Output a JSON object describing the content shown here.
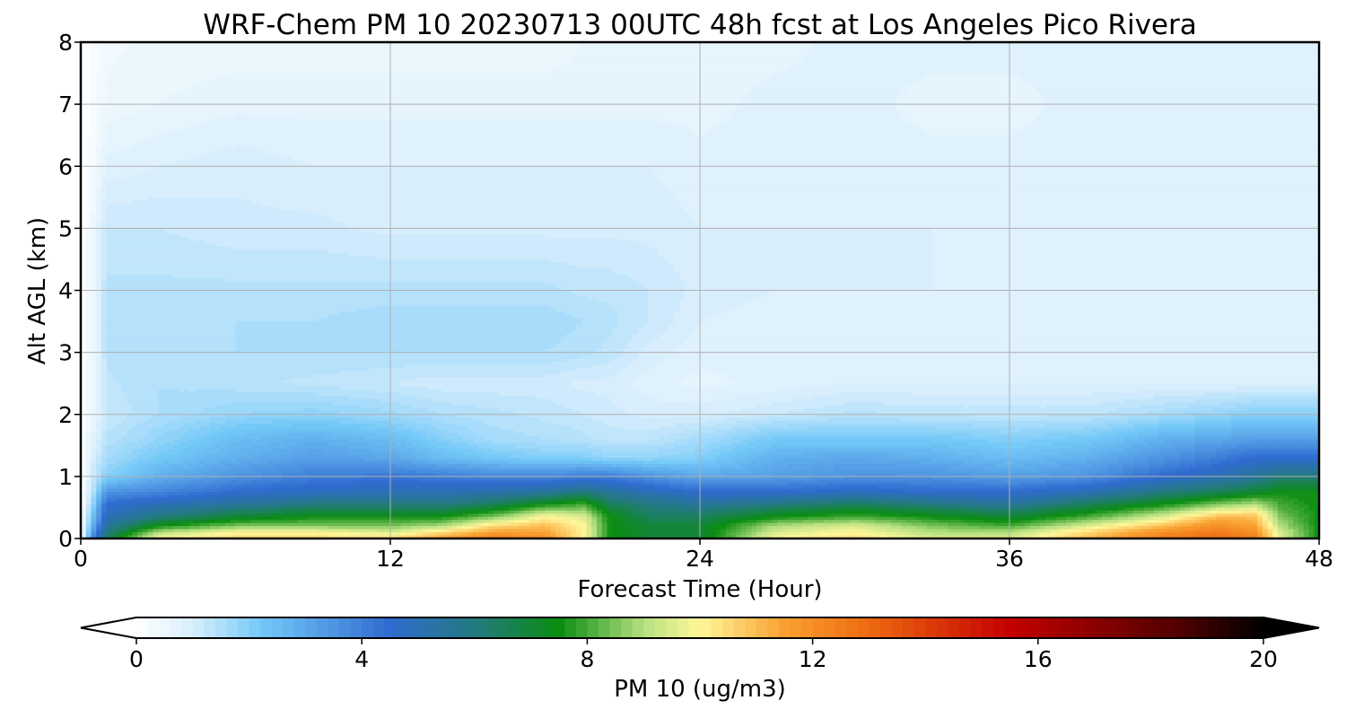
{
  "chart_data": {
    "type": "heatmap",
    "title": "WRF-Chem PM 10  20230713 00UTC 48h fcst at Los Angeles Pico Rivera",
    "xlabel": "Forecast Time (Hour)",
    "ylabel": "Alt AGL (km)",
    "xlim": [
      0,
      48
    ],
    "ylim": [
      0,
      8
    ],
    "xticks": [
      "0",
      "12",
      "24",
      "36",
      "48"
    ],
    "yticks": [
      "0",
      "1",
      "2",
      "3",
      "4",
      "5",
      "6",
      "7",
      "8"
    ],
    "grid": true,
    "colorbar": {
      "label": "PM 10  (ug/m3)",
      "range": [
        0,
        20
      ],
      "ticks": [
        "0",
        "4",
        "8",
        "12",
        "16",
        "20"
      ],
      "extend": "both",
      "stops": [
        {
          "v": 0,
          "c": "#ffffff"
        },
        {
          "v": 1,
          "c": "#d8eefc"
        },
        {
          "v": 2.2,
          "c": "#74c9f8"
        },
        {
          "v": 4.5,
          "c": "#2f6bd0"
        },
        {
          "v": 6,
          "c": "#237a80"
        },
        {
          "v": 7.5,
          "c": "#0a8d10"
        },
        {
          "v": 9,
          "c": "#b6e080"
        },
        {
          "v": 10,
          "c": "#fff79a"
        },
        {
          "v": 11.5,
          "c": "#f9a030"
        },
        {
          "v": 13,
          "c": "#ee6a10"
        },
        {
          "v": 15.5,
          "c": "#c40000"
        },
        {
          "v": 18.5,
          "c": "#500000"
        },
        {
          "v": 20,
          "c": "#000000"
        }
      ]
    },
    "x": [
      0,
      0.5,
      1,
      3,
      6,
      9,
      12,
      14,
      16,
      18,
      19.5,
      20.5,
      22,
      24,
      27,
      30,
      33,
      36,
      39,
      42,
      44,
      45.5,
      46.5,
      48
    ],
    "y": [
      0,
      0.1,
      0.2,
      0.35,
      0.55,
      0.75,
      1.0,
      1.3,
      1.6,
      2.0,
      2.5,
      3.0,
      3.5,
      4.0,
      5.0,
      6.0,
      7.0,
      8.0
    ],
    "z": [
      [
        0.0,
        4.0,
        6.5,
        10.0,
        10.5,
        10.5,
        10.5,
        11.5,
        12.5,
        12.0,
        10.0,
        7.5,
        7.0,
        7.0,
        10.0,
        10.5,
        9.5,
        9.5,
        11.0,
        12.5,
        13.0,
        12.5,
        9.5,
        7.5
      ],
      [
        0.0,
        3.5,
        6.0,
        9.0,
        10.0,
        10.0,
        9.5,
        10.5,
        11.5,
        11.5,
        10.0,
        7.5,
        7.0,
        7.0,
        9.5,
        10.0,
        9.0,
        9.0,
        10.5,
        12.0,
        12.5,
        12.0,
        9.5,
        7.5
      ],
      [
        0.0,
        3.0,
        5.5,
        7.5,
        8.5,
        8.5,
        8.5,
        9.0,
        10.5,
        11.0,
        10.0,
        7.5,
        7.0,
        7.0,
        9.0,
        9.5,
        8.5,
        8.0,
        9.5,
        11.0,
        12.0,
        11.5,
        9.0,
        7.5
      ],
      [
        0.0,
        2.5,
        5.0,
        6.0,
        7.0,
        7.5,
        7.5,
        7.5,
        8.5,
        10.0,
        9.5,
        7.5,
        6.5,
        6.5,
        7.5,
        8.0,
        7.5,
        7.0,
        8.0,
        9.5,
        11.0,
        11.0,
        8.5,
        7.5
      ],
      [
        0.0,
        2.0,
        4.5,
        5.0,
        5.5,
        6.0,
        6.0,
        6.0,
        6.5,
        7.5,
        8.0,
        6.5,
        6.0,
        5.5,
        6.0,
        6.5,
        6.0,
        5.5,
        6.5,
        7.5,
        8.5,
        9.0,
        8.0,
        7.5
      ],
      [
        0.0,
        1.5,
        3.5,
        3.8,
        4.5,
        4.8,
        5.0,
        5.0,
        5.2,
        5.5,
        6.0,
        5.5,
        5.0,
        4.5,
        4.5,
        4.8,
        4.5,
        4.5,
        5.0,
        6.0,
        6.5,
        7.0,
        7.5,
        7.5
      ],
      [
        0.0,
        1.2,
        2.0,
        2.8,
        3.5,
        4.0,
        4.2,
        4.0,
        3.8,
        3.8,
        4.0,
        4.0,
        3.5,
        3.0,
        3.2,
        3.5,
        3.5,
        3.2,
        3.5,
        4.5,
        5.0,
        5.5,
        6.0,
        6.0
      ],
      [
        0.0,
        1.0,
        1.6,
        2.2,
        2.8,
        3.2,
        3.0,
        2.5,
        2.2,
        2.0,
        2.0,
        1.8,
        1.8,
        2.0,
        2.8,
        3.0,
        2.8,
        2.5,
        2.8,
        3.5,
        4.0,
        4.5,
        4.5,
        4.5
      ],
      [
        0.0,
        0.8,
        1.4,
        1.8,
        2.5,
        2.8,
        2.5,
        2.0,
        1.6,
        1.5,
        1.4,
        1.3,
        1.3,
        1.6,
        2.2,
        2.2,
        2.2,
        2.0,
        2.2,
        2.8,
        3.0,
        3.2,
        3.2,
        3.2
      ],
      [
        0.0,
        0.6,
        1.2,
        1.5,
        1.8,
        1.9,
        1.7,
        1.5,
        1.4,
        1.3,
        1.2,
        1.1,
        1.0,
        1.0,
        1.2,
        1.4,
        1.3,
        1.3,
        1.3,
        1.6,
        1.8,
        2.0,
        2.0,
        2.0
      ],
      [
        0.0,
        0.5,
        1.3,
        1.5,
        1.4,
        1.3,
        1.2,
        1.1,
        1.1,
        1.1,
        1.0,
        1.0,
        0.8,
        0.7,
        0.8,
        0.9,
        0.9,
        0.9,
        0.9,
        0.9,
        0.9,
        0.9,
        0.9,
        0.9
      ],
      [
        0.0,
        0.5,
        1.4,
        1.5,
        1.5,
        1.5,
        1.5,
        1.5,
        1.5,
        1.5,
        1.4,
        1.3,
        1.0,
        0.8,
        0.8,
        0.8,
        0.8,
        0.8,
        0.8,
        0.8,
        0.8,
        0.8,
        0.8,
        0.8
      ],
      [
        0.0,
        0.5,
        1.4,
        1.4,
        1.5,
        1.5,
        1.6,
        1.6,
        1.6,
        1.6,
        1.5,
        1.4,
        1.2,
        0.9,
        0.8,
        0.8,
        0.8,
        0.8,
        0.8,
        0.8,
        0.8,
        0.8,
        0.8,
        0.8
      ],
      [
        0.0,
        0.5,
        1.4,
        1.4,
        1.4,
        1.4,
        1.4,
        1.4,
        1.4,
        1.4,
        1.3,
        1.3,
        1.2,
        1.0,
        0.9,
        0.9,
        0.9,
        0.8,
        0.8,
        0.8,
        0.8,
        0.8,
        0.8,
        0.8
      ],
      [
        0.0,
        0.5,
        1.2,
        1.2,
        1.1,
        1.1,
        1.0,
        1.0,
        1.0,
        1.0,
        1.0,
        1.0,
        1.0,
        0.9,
        0.9,
        0.9,
        0.9,
        0.8,
        0.8,
        0.8,
        0.8,
        0.8,
        0.8,
        0.8
      ],
      [
        0.0,
        0.3,
        0.8,
        0.9,
        1.0,
        0.9,
        0.9,
        0.9,
        0.9,
        0.9,
        0.9,
        0.9,
        0.9,
        0.8,
        0.8,
        0.8,
        0.8,
        0.8,
        0.8,
        0.8,
        0.8,
        0.8,
        0.8,
        0.8
      ],
      [
        0.0,
        0.2,
        0.5,
        0.6,
        0.7,
        0.7,
        0.7,
        0.7,
        0.7,
        0.7,
        0.7,
        0.7,
        0.7,
        0.7,
        0.8,
        0.8,
        0.7,
        0.7,
        0.8,
        0.8,
        0.8,
        0.8,
        0.8,
        0.8
      ],
      [
        0.0,
        0.2,
        0.4,
        0.5,
        0.5,
        0.5,
        0.5,
        0.5,
        0.5,
        0.5,
        0.6,
        0.7,
        0.7,
        0.7,
        0.7,
        0.8,
        0.8,
        0.8,
        0.8,
        0.8,
        0.8,
        0.8,
        0.8,
        0.8
      ]
    ]
  }
}
